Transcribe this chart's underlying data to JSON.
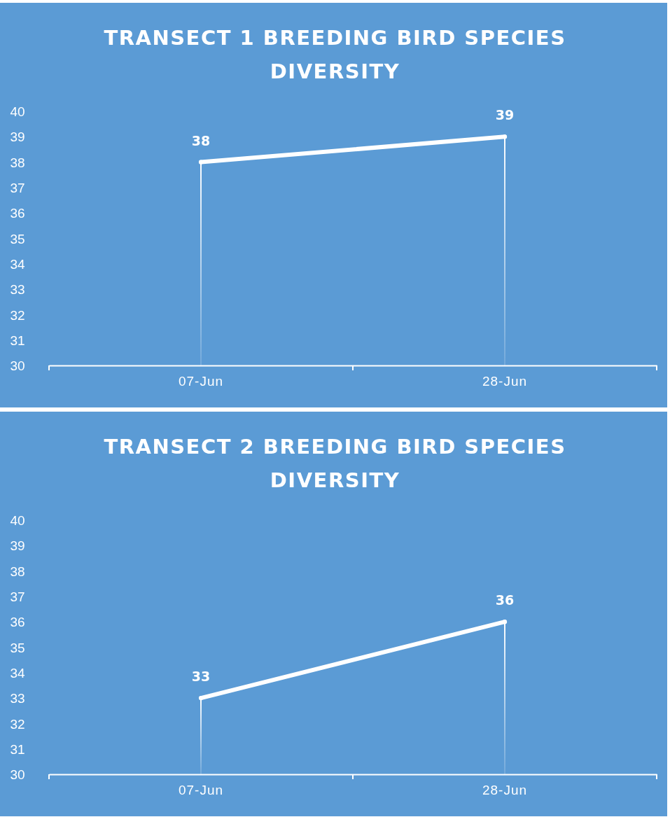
{
  "chart_data": [
    {
      "type": "line",
      "title": "TRANSECT 1 BREEDING BIRD SPECIES DIVERSITY",
      "categories": [
        "07-Jun",
        "28-Jun"
      ],
      "series": [
        {
          "type": "bar",
          "color": "#ffffff",
          "values": [
            38,
            39
          ]
        },
        {
          "color": "#ffffff",
          "values": [
            38,
            39
          ],
          "value_labels": [
            "38",
            "39"
          ]
        }
      ],
      "ylim": [
        30,
        40
      ],
      "yticks": [
        30,
        31,
        32,
        33,
        34,
        35,
        36,
        37,
        38,
        39,
        40
      ],
      "grid": false,
      "marker": "circle",
      "line_style": "solid"
    },
    {
      "type": "line",
      "title": "TRANSECT 2 BREEDING BIRD SPECIES DIVERSITY",
      "categories": [
        "07-Jun",
        "28-Jun"
      ],
      "series": [
        {
          "type": "bar",
          "color": "#ffffff",
          "values": [
            33,
            36
          ]
        },
        {
          "color": "#ffffff",
          "values": [
            33,
            36
          ],
          "value_labels": [
            "33",
            "36"
          ]
        }
      ],
      "ylim": [
        30,
        40
      ],
      "yticks": [
        30,
        31,
        32,
        33,
        34,
        35,
        36,
        37,
        38,
        39,
        40
      ],
      "grid": false,
      "marker": "circle",
      "line_style": "solid"
    }
  ]
}
